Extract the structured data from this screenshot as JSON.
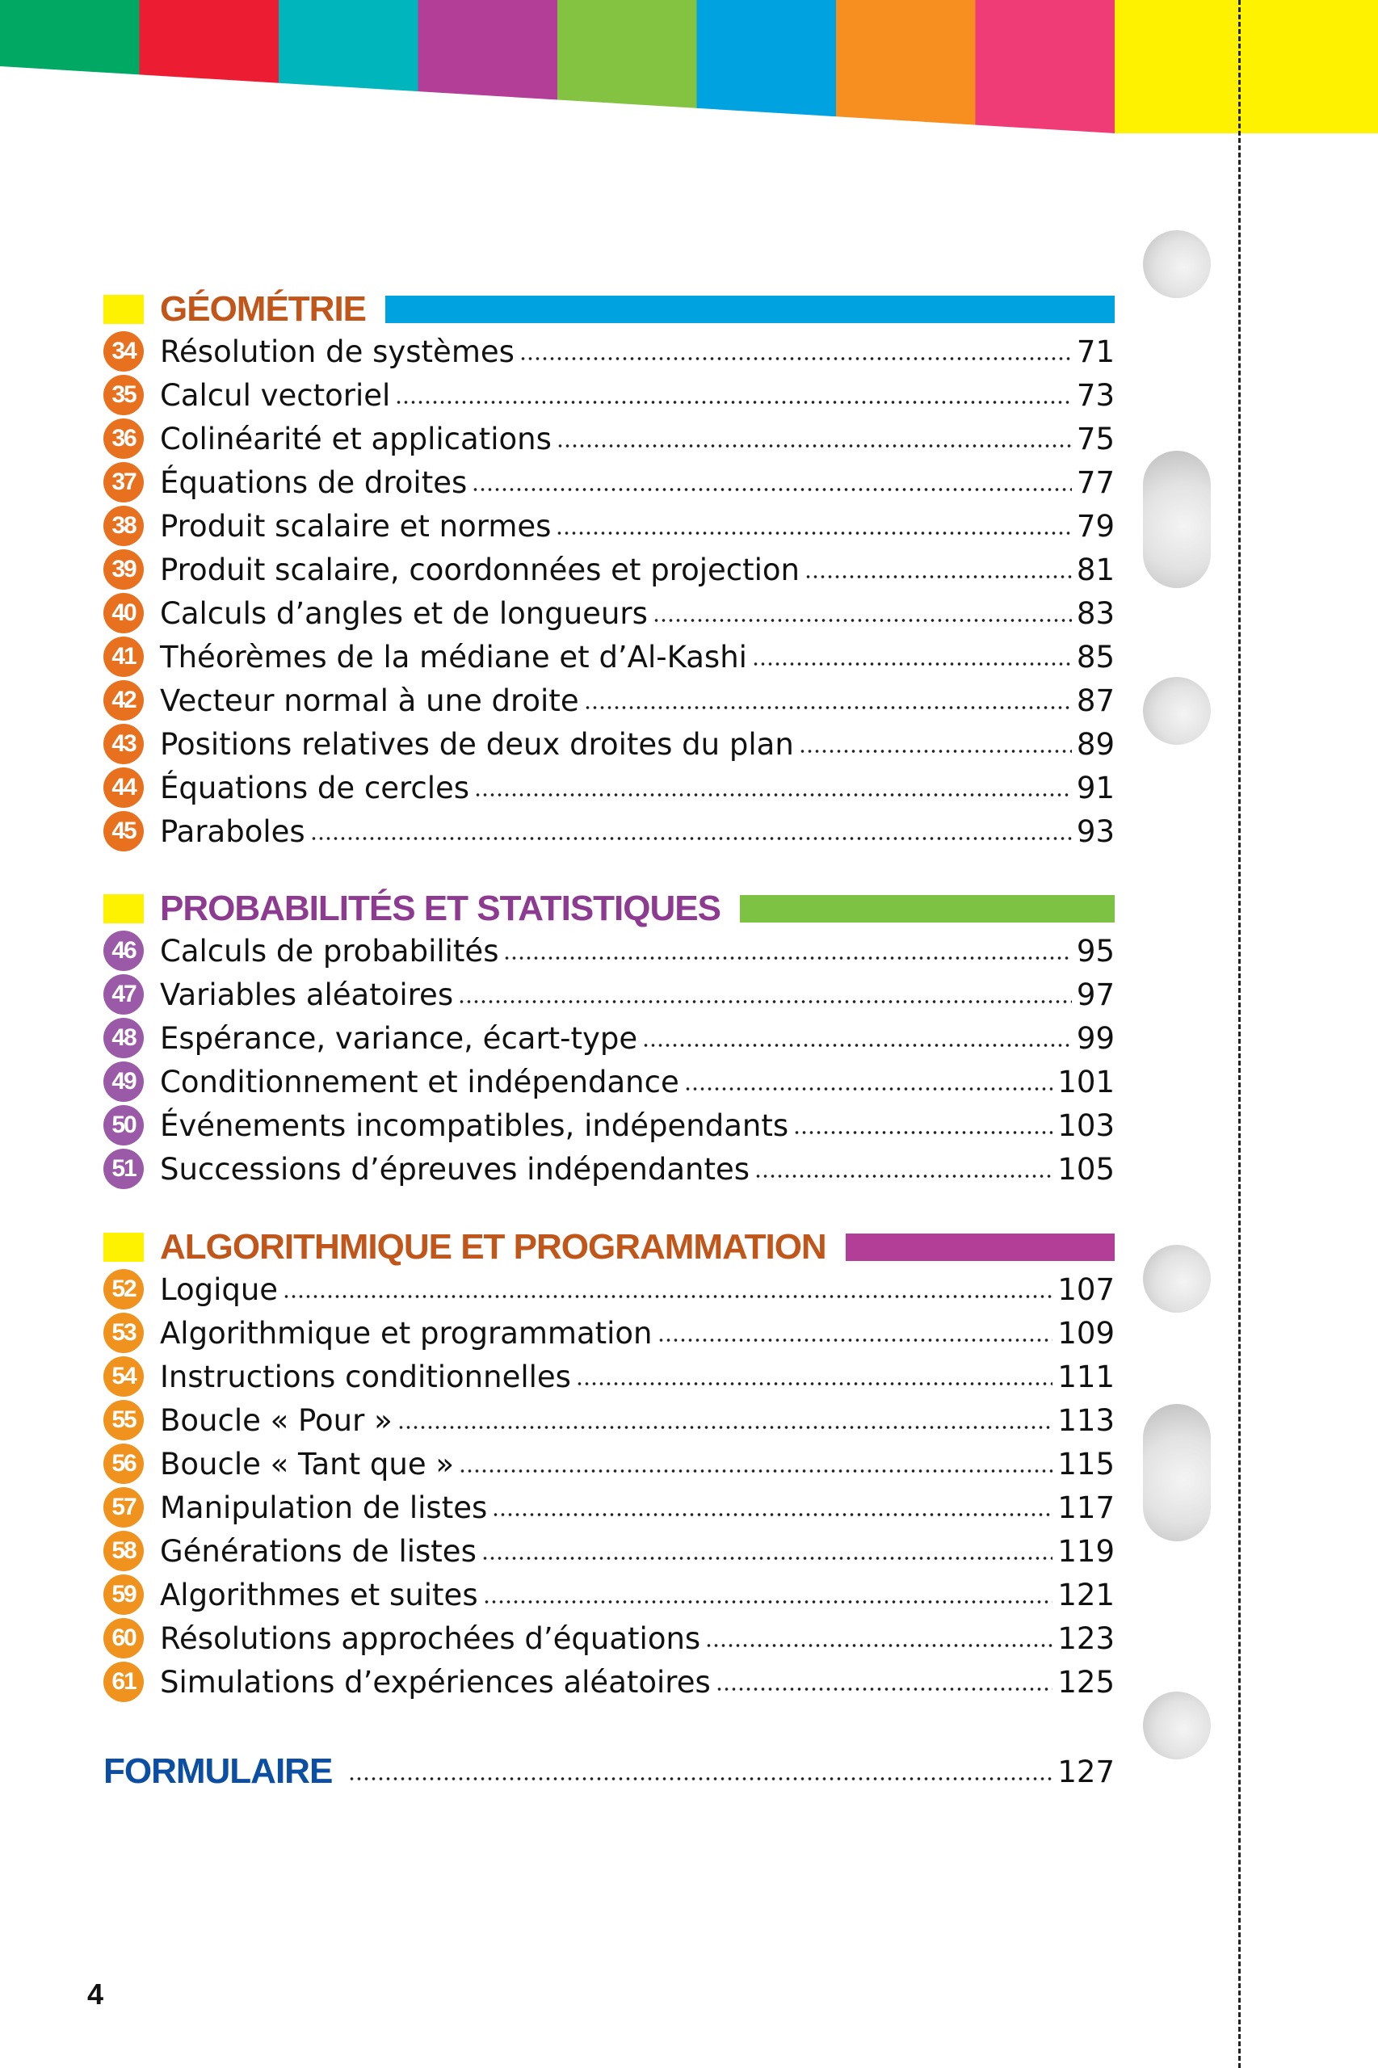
{
  "colors": {
    "bands": [
      "#00a963",
      "#ec1c32",
      "#00b5bb",
      "#b23e98",
      "#84c341",
      "#00a3e0",
      "#f68e20",
      "#ef3b76"
    ],
    "tab_yellow": "#fff200",
    "geometry_title": "#c1561b",
    "geometry_badge": "#e8711f",
    "geometry_bar": "#00a3e0",
    "proba_title": "#8d3b91",
    "proba_badge": "#9a5aa7",
    "proba_bar": "#7dc242",
    "algo_title": "#c1561b",
    "algo_badge": "#f0921e",
    "algo_bar": "#b23e98"
  },
  "sections": [
    {
      "title": "GÉOMÉTRIE",
      "items": [
        {
          "num": "34",
          "label": "Résolution de systèmes",
          "page": "71"
        },
        {
          "num": "35",
          "label": "Calcul vectoriel",
          "page": "73"
        },
        {
          "num": "36",
          "label": "Colinéarité et applications",
          "page": "75"
        },
        {
          "num": "37",
          "label": "Équations de droites",
          "page": "77"
        },
        {
          "num": "38",
          "label": "Produit scalaire et normes",
          "page": "79"
        },
        {
          "num": "39",
          "label": "Produit scalaire, coordonnées et projection",
          "page": "81"
        },
        {
          "num": "40",
          "label": "Calculs d’angles et de longueurs",
          "page": "83"
        },
        {
          "num": "41",
          "label": "Théorèmes de la médiane et d’Al-Kashi",
          "page": "85"
        },
        {
          "num": "42",
          "label": "Vecteur normal à une droite",
          "page": "87"
        },
        {
          "num": "43",
          "label": "Positions relatives de deux droites du plan",
          "page": "89"
        },
        {
          "num": "44",
          "label": "Équations de cercles",
          "page": "91"
        },
        {
          "num": "45",
          "label": "Paraboles",
          "page": "93"
        }
      ]
    },
    {
      "title": "PROBABILITÉS ET STATISTIQUES",
      "items": [
        {
          "num": "46",
          "label": "Calculs de probabilités",
          "page": "95"
        },
        {
          "num": "47",
          "label": "Variables aléatoires",
          "page": "97"
        },
        {
          "num": "48",
          "label": "Espérance, variance, écart-type",
          "page": "99"
        },
        {
          "num": "49",
          "label": "Conditionnement et indépendance",
          "page": "101"
        },
        {
          "num": "50",
          "label": "Événements incompatibles, indépendants",
          "page": "103"
        },
        {
          "num": "51",
          "label": "Successions d’épreuves indépendantes",
          "page": "105"
        }
      ]
    },
    {
      "title": "ALGORITHMIQUE ET PROGRAMMATION",
      "items": [
        {
          "num": "52",
          "label": "Logique",
          "page": "107"
        },
        {
          "num": "53",
          "label": "Algorithmique et programmation",
          "page": "109"
        },
        {
          "num": "54",
          "label": "Instructions conditionnelles",
          "page": "111"
        },
        {
          "num": "55",
          "label": "Boucle « Pour »",
          "page": "113"
        },
        {
          "num": "56",
          "label": "Boucle « Tant que »",
          "page": "115"
        },
        {
          "num": "57",
          "label": "Manipulation de listes",
          "page": "117"
        },
        {
          "num": "58",
          "label": "Générations de listes",
          "page": "119"
        },
        {
          "num": "59",
          "label": "Algorithmes et suites",
          "page": "121"
        },
        {
          "num": "60",
          "label": "Résolutions approchées d’équations",
          "page": "123"
        },
        {
          "num": "61",
          "label": "Simulations d’expériences aléatoires",
          "page": "125"
        }
      ]
    }
  ],
  "formulaire": {
    "title": "FORMULAIRE",
    "page": "127"
  },
  "page_number": "4"
}
